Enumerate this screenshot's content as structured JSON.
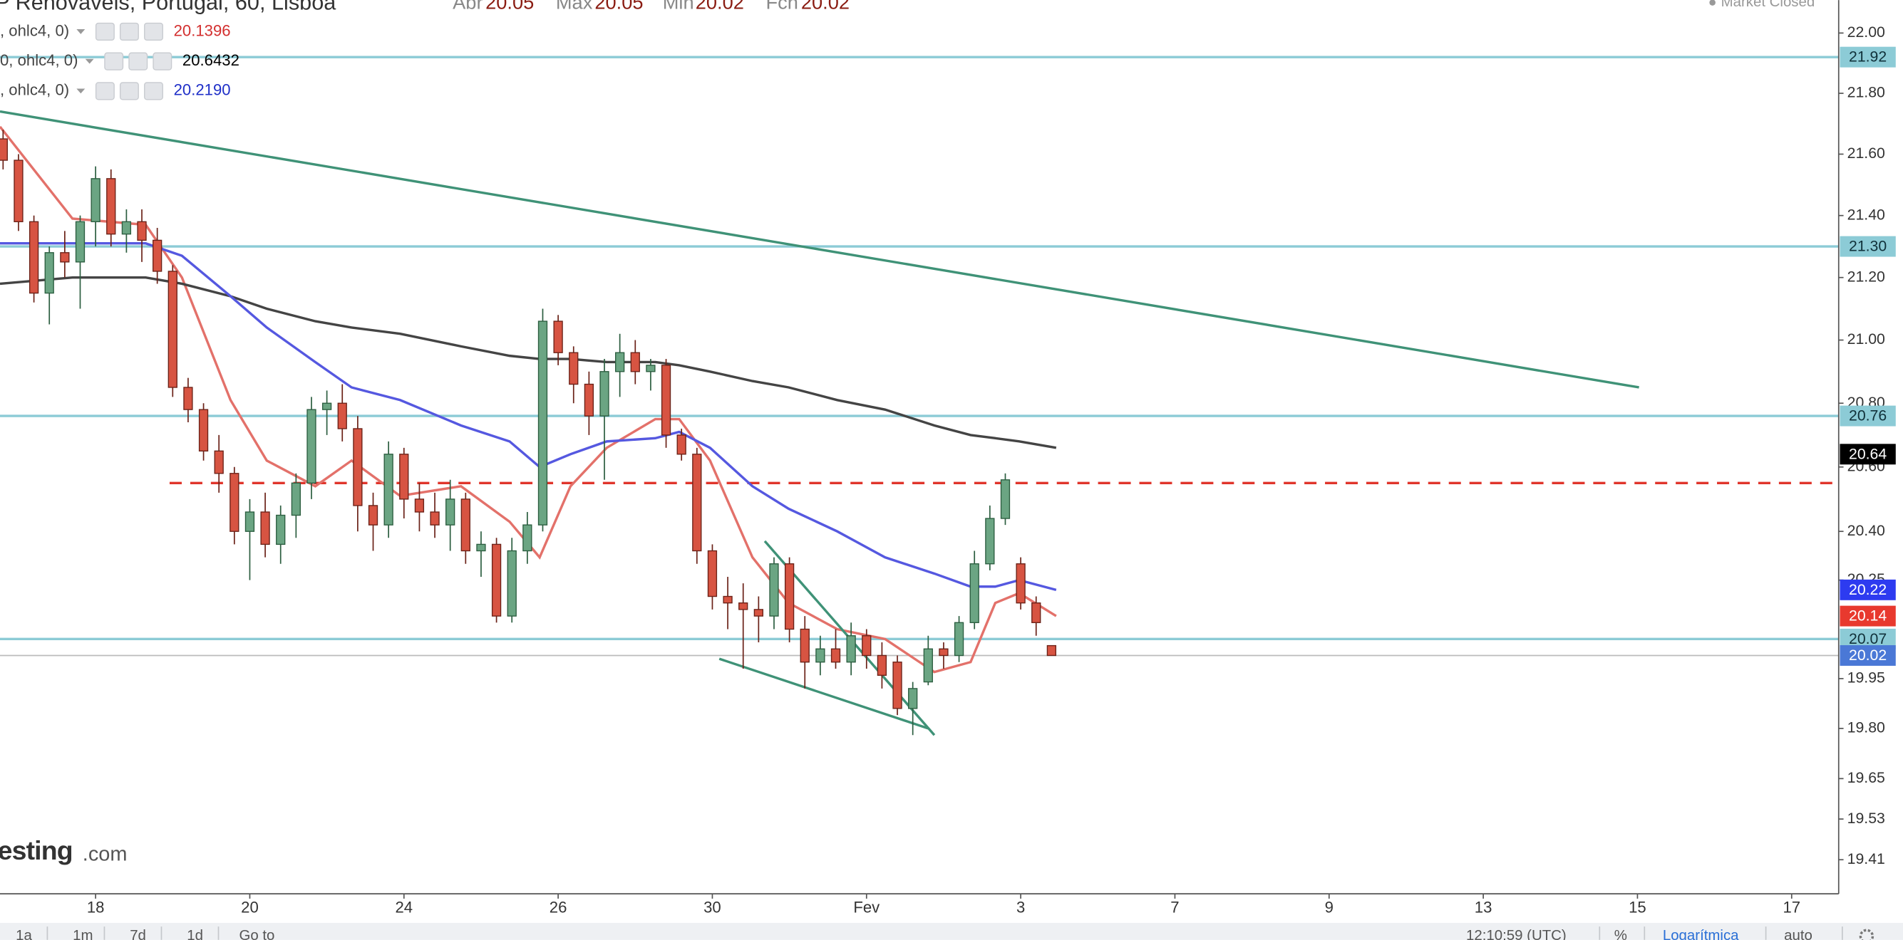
{
  "chart_data": {
    "type": "candlestick",
    "log_scale": true,
    "grid": false,
    "header": {
      "title": "P Renovaveis, Portugal, 60, Lisboa",
      "labels": [
        "Abr",
        "Max",
        "Min",
        "Fch"
      ],
      "market_status": "Market Closed"
    },
    "xlim": [
      -1.24,
      22.61
    ],
    "xticks": [
      {
        "value": 0,
        "label": "18"
      },
      {
        "value": 2,
        "label": "20"
      },
      {
        "value": 4,
        "label": "24"
      },
      {
        "value": 6,
        "label": "26"
      },
      {
        "value": 8,
        "label": "30"
      },
      {
        "value": 10,
        "label": "Fev"
      },
      {
        "value": 12,
        "label": "3"
      },
      {
        "value": 14,
        "label": "7"
      },
      {
        "value": 16,
        "label": "9"
      },
      {
        "value": 18,
        "label": "13"
      },
      {
        "value": 20,
        "label": "15"
      },
      {
        "value": 22,
        "label": "17"
      }
    ],
    "ylim": [
      19.31,
      22.11
    ],
    "yticks": [
      {
        "value": 22,
        "label": "22.00"
      },
      {
        "value": 21.8,
        "label": "21.80"
      },
      {
        "value": 21.6,
        "label": "21.60"
      },
      {
        "value": 21.4,
        "label": "21.40"
      },
      {
        "value": 21.2,
        "label": "21.20"
      },
      {
        "value": 21,
        "label": "21.00"
      },
      {
        "value": 20.8,
        "label": "20.80"
      },
      {
        "value": 20.6,
        "label": "20.60"
      },
      {
        "value": 20.4,
        "label": "20.40"
      },
      {
        "value": 20.25,
        "label": "20.25"
      },
      {
        "value": 19.95,
        "label": "19.95"
      },
      {
        "value": 19.8,
        "label": "19.80"
      },
      {
        "value": 19.65,
        "label": "19.65"
      },
      {
        "value": 19.53,
        "label": "19.53"
      },
      {
        "value": 19.41,
        "label": "19.41"
      }
    ],
    "up_color": "#6ba583",
    "down_color": "#d75442",
    "candles": {
      "x": [
        -1.2,
        -1.0,
        -0.8,
        -0.6,
        -0.4,
        -0.2,
        0,
        0.2,
        0.4,
        0.6,
        0.8,
        1.0,
        1.2,
        1.4,
        1.6,
        1.8,
        2.0,
        2.2,
        2.4,
        2.6,
        2.8,
        3.0,
        3.2,
        3.4,
        3.6,
        3.8,
        4.0,
        4.2,
        4.4,
        4.6,
        4.8,
        5.0,
        5.2,
        5.4,
        5.6,
        5.8,
        6.0,
        6.2,
        6.4,
        6.6,
        6.8,
        7.0,
        7.2,
        7.4,
        7.6,
        7.8,
        8.0,
        8.2,
        8.4,
        8.6,
        8.8,
        9.0,
        9.2,
        9.4,
        9.6,
        9.8,
        10.0,
        10.2,
        10.4,
        10.6,
        10.8,
        11.0,
        11.2,
        11.4,
        11.6,
        11.8,
        12.0,
        12.2,
        12.4
      ],
      "open": [
        21.65,
        21.58,
        21.38,
        21.15,
        21.28,
        21.25,
        21.38,
        21.52,
        21.34,
        21.38,
        21.32,
        21.22,
        20.85,
        20.78,
        20.65,
        20.58,
        20.4,
        20.46,
        20.36,
        20.45,
        20.55,
        20.78,
        20.8,
        20.72,
        20.48,
        20.42,
        20.64,
        20.5,
        20.46,
        20.42,
        20.5,
        20.34,
        20.36,
        20.14,
        20.34,
        20.42,
        21.06,
        20.96,
        20.86,
        20.76,
        20.9,
        20.96,
        20.9,
        20.92,
        20.7,
        20.64,
        20.34,
        20.2,
        20.18,
        20.16,
        20.14,
        20.3,
        20.1,
        20.0,
        20.04,
        20.0,
        20.08,
        20.02,
        20.0,
        19.86,
        19.94,
        20.04,
        20.02,
        20.12,
        20.3,
        20.44,
        20.3,
        20.18,
        20.05
      ],
      "high": [
        21.68,
        21.6,
        21.4,
        21.3,
        21.35,
        21.4,
        21.56,
        21.55,
        21.42,
        21.42,
        21.36,
        21.24,
        20.88,
        20.8,
        20.7,
        20.6,
        20.5,
        20.52,
        20.48,
        20.58,
        20.82,
        20.84,
        20.86,
        20.76,
        20.52,
        20.68,
        20.66,
        20.55,
        20.52,
        20.56,
        20.52,
        20.4,
        20.38,
        20.38,
        20.46,
        21.1,
        21.08,
        20.98,
        20.9,
        20.94,
        21.02,
        21.0,
        20.94,
        20.94,
        20.72,
        20.66,
        20.36,
        20.26,
        20.24,
        20.2,
        20.32,
        20.32,
        20.14,
        20.08,
        20.1,
        20.12,
        20.1,
        20.06,
        20.02,
        19.94,
        20.08,
        20.06,
        20.14,
        20.34,
        20.48,
        20.58,
        20.32,
        20.2,
        20.05
      ],
      "low": [
        21.55,
        21.35,
        21.12,
        21.05,
        21.2,
        21.1,
        21.3,
        21.3,
        21.28,
        21.25,
        21.18,
        20.82,
        20.74,
        20.62,
        20.52,
        20.36,
        20.25,
        20.32,
        20.3,
        20.38,
        20.5,
        20.7,
        20.68,
        20.4,
        20.34,
        20.38,
        20.44,
        20.4,
        20.38,
        20.34,
        20.3,
        20.26,
        20.12,
        20.12,
        20.3,
        20.4,
        20.92,
        20.8,
        20.7,
        20.56,
        20.82,
        20.86,
        20.84,
        20.66,
        20.62,
        20.3,
        20.16,
        20.1,
        19.98,
        20.06,
        20.1,
        20.06,
        19.92,
        19.96,
        19.98,
        19.96,
        19.98,
        19.92,
        19.84,
        19.78,
        19.93,
        19.98,
        20.0,
        20.1,
        20.28,
        20.42,
        20.16,
        20.08,
        20.02
      ],
      "close": [
        21.58,
        21.38,
        21.15,
        21.28,
        21.25,
        21.38,
        21.52,
        21.34,
        21.38,
        21.32,
        21.22,
        20.85,
        20.78,
        20.65,
        20.58,
        20.4,
        20.46,
        20.36,
        20.45,
        20.55,
        20.78,
        20.8,
        20.72,
        20.48,
        20.42,
        20.64,
        20.5,
        20.46,
        20.42,
        20.5,
        20.34,
        20.36,
        20.14,
        20.34,
        20.42,
        21.06,
        20.96,
        20.86,
        20.76,
        20.9,
        20.96,
        20.9,
        20.92,
        20.7,
        20.64,
        20.34,
        20.2,
        20.18,
        20.16,
        20.14,
        20.3,
        20.1,
        20.0,
        20.04,
        20.0,
        20.08,
        20.02,
        19.96,
        19.86,
        19.92,
        20.04,
        20.02,
        20.12,
        20.3,
        20.44,
        20.56,
        20.18,
        20.12,
        20.02
      ]
    },
    "ma_x": [
      -1.24,
      -0.3,
      0.65,
      1.12,
      1.75,
      2.22,
      2.85,
      3.32,
      3.95,
      4.74,
      5.37,
      5.76,
      6.16,
      6.63,
      7.26,
      7.57,
      7.97,
      8.52,
      8.99,
      9.62,
      10.24,
      10.88,
      11.35,
      11.67,
      11.98,
      12.46
    ],
    "series": [
      {
        "name": ", ohlc4, 0)",
        "color": "#e3716a",
        "label_color": "#d32f2f",
        "tag_color": "#e8392e",
        "last_value": 20.1396,
        "tag": 20.14,
        "values": [
          21.69,
          21.39,
          21.37,
          21.2,
          20.81,
          20.62,
          20.54,
          20.62,
          20.51,
          20.54,
          20.43,
          20.32,
          20.54,
          20.66,
          20.75,
          20.75,
          20.62,
          20.32,
          20.18,
          20.1,
          20.07,
          19.97,
          20.0,
          20.18,
          20.21,
          20.14
        ]
      },
      {
        "name": "0, ohlc4, 0)",
        "color": "#444444",
        "label_color": "#000000",
        "tag_color": "#000000",
        "last_value": 20.6432,
        "tag": 20.64,
        "values": [
          21.18,
          21.2,
          21.2,
          21.18,
          21.14,
          21.1,
          21.06,
          21.04,
          21.02,
          20.98,
          20.95,
          20.94,
          20.94,
          20.93,
          20.93,
          20.92,
          20.9,
          20.87,
          20.85,
          20.81,
          20.78,
          20.73,
          20.7,
          20.69,
          20.68,
          20.66
        ]
      },
      {
        "name": ", ohlc4, 0)",
        "color": "#5558e0",
        "label_color": "#1f2fc8",
        "tag_color": "#2d3bf0",
        "last_value": {
          "value": 20.219,
          "label": "20.2190"
        },
        "tag": 20.22,
        "values": [
          21.31,
          21.31,
          21.31,
          21.27,
          21.14,
          21.04,
          20.93,
          20.85,
          20.81,
          20.73,
          20.68,
          20.6,
          20.64,
          20.68,
          20.69,
          20.71,
          20.66,
          20.54,
          20.47,
          20.4,
          20.32,
          20.27,
          20.23,
          20.23,
          20.25,
          20.22
        ]
      }
    ],
    "hlines": [
      {
        "value": 21.92
      },
      {
        "value": 21.3,
        "label": "21.30"
      },
      {
        "value": 20.76
      },
      {
        "value": 20.07
      }
    ],
    "hline_color": "#8ccbd6",
    "dashed_line": {
      "value": 20.55,
      "x": 0.96,
      "color": "#e0352b"
    },
    "last_price": {
      "value": 20.02,
      "color": "#4a78d6"
    },
    "trendlines": [
      {
        "x": [
          -1.24,
          20.02
        ],
        "y": [
          21.74,
          20.85
        ]
      },
      {
        "x": [
          8.68,
          10.88
        ],
        "y": [
          20.37,
          19.78
        ]
      },
      {
        "x": [
          8.09,
          10.8
        ],
        "y": [
          20.01,
          19.8
        ]
      }
    ],
    "trend_color": "#3f9277",
    "watermark": [
      "esting",
      ".com"
    ],
    "toolbar": {
      "ranges": [
        "1a",
        "1m",
        "7d",
        "1d"
      ],
      "goto": "Go to",
      "time": "12:10:59 (UTC)",
      "percent": "%",
      "log": "Logarítmica",
      "auto": "auto"
    }
  }
}
